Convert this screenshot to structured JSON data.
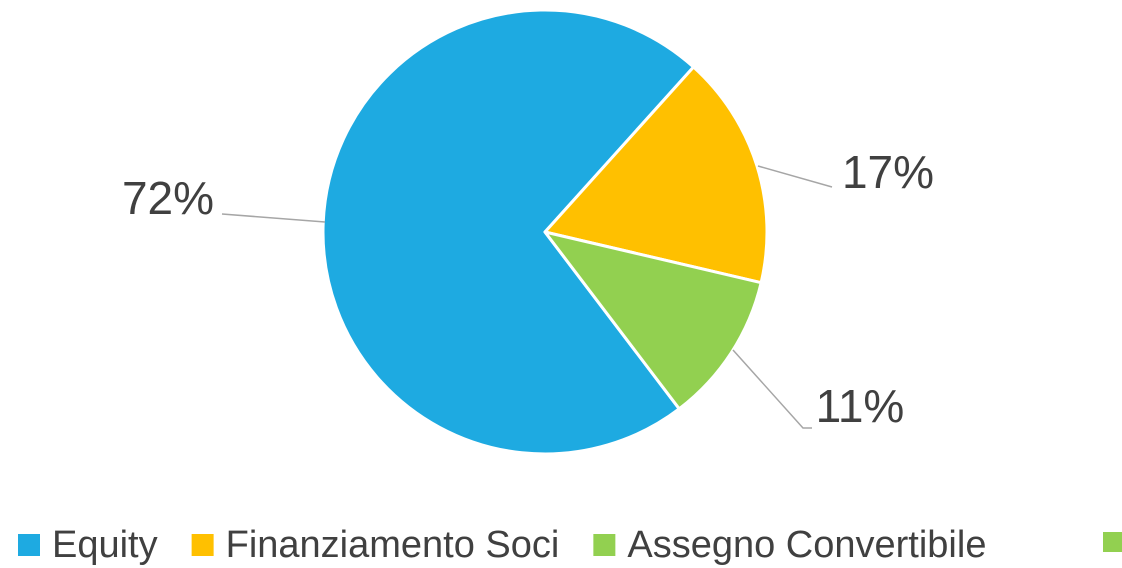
{
  "chart_data": {
    "type": "pie",
    "categories": [
      "Equity",
      "Finanziamento Soci",
      "Assegno Convertibile"
    ],
    "values": [
      72,
      17,
      11
    ],
    "value_labels": [
      "72%",
      "17%",
      "11%"
    ],
    "colors": [
      "#1eaae1",
      "#ffc000",
      "#92d050"
    ],
    "legend": "bottom"
  }
}
